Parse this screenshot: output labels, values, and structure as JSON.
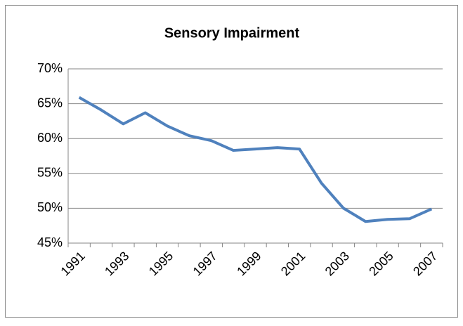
{
  "chart_data": {
    "type": "line",
    "title": "Sensory Impairment",
    "categories": [
      "1991",
      null,
      "1993",
      null,
      "1995",
      null,
      "1997",
      null,
      "1999",
      null,
      "2001",
      null,
      "2003",
      null,
      "2005",
      null,
      "2007"
    ],
    "series": [
      {
        "name": "Sensory Impairment",
        "color": "#4f81bd",
        "values": [
          65.9,
          64.1,
          62.1,
          63.7,
          61.8,
          60.4,
          59.7,
          58.3,
          58.5,
          58.7,
          58.5,
          53.6,
          50.0,
          48.1,
          48.4,
          48.5,
          49.9
        ]
      }
    ],
    "ylim": [
      45,
      70
    ],
    "yticks": [
      {
        "value": 45,
        "label": "45%"
      },
      {
        "value": 50,
        "label": "50%"
      },
      {
        "value": 55,
        "label": "55%"
      },
      {
        "value": 60,
        "label": "60%"
      },
      {
        "value": 65,
        "label": "65%"
      },
      {
        "value": 70,
        "label": "70%"
      }
    ],
    "grid": true
  }
}
